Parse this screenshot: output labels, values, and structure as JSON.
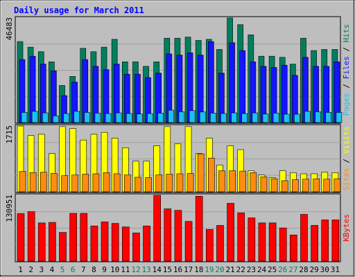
{
  "chart_data": {
    "type": "bar",
    "title": "Daily usage for March 2011",
    "categories": [
      "1",
      "2",
      "3",
      "4",
      "5",
      "6",
      "7",
      "8",
      "9",
      "10",
      "11",
      "12",
      "13",
      "14",
      "15",
      "16",
      "17",
      "18",
      "19",
      "20",
      "21",
      "22",
      "23",
      "24",
      "25",
      "26",
      "27",
      "28",
      "29",
      "30",
      "31"
    ],
    "weekend_days": [
      "5",
      "6",
      "12",
      "13",
      "19",
      "20",
      "26",
      "27"
    ],
    "panels": [
      {
        "name": "hits-files-pages",
        "max_label": "46483",
        "ylim": [
          0,
          46483
        ],
        "right_label": [
          "Pages",
          "Files",
          "Hits"
        ],
        "series": [
          {
            "name": "Hits",
            "color": "#007f5f",
            "values": [
              36000,
              33500,
              31500,
              27000,
              16500,
              20500,
              33000,
              31500,
              33500,
              37000,
              27000,
              27000,
              25000,
              27000,
              37500,
              37500,
              38000,
              36500,
              37000,
              32500,
              46500,
              43500,
              39000,
              29500,
              29500,
              29000,
              26000,
              37500,
              32000,
              32500,
              32500
            ]
          },
          {
            "name": "Files",
            "color": "#1515ff",
            "values": [
              28000,
              29500,
              26000,
              23000,
              12000,
              18000,
              28000,
              25000,
              23500,
              26000,
              21500,
              21500,
              20000,
              22000,
              30500,
              30000,
              31000,
              30000,
              36000,
              22000,
              35500,
              32000,
              27000,
              25000,
              24500,
              25500,
              21000,
              29000,
              25000,
              25000,
              27000
            ]
          },
          {
            "name": "Pages",
            "color": "#1ac1f2",
            "values": [
              4500,
              5000,
              4300,
              3000,
              4000,
              5000,
              4500,
              4200,
              4000,
              4300,
              4000,
              3800,
              4000,
              4200,
              5500,
              4800,
              5300,
              4700,
              4200,
              4000,
              4300,
              4000,
              4300,
              3800,
              4200,
              3700,
              3700,
              5000,
              4800,
              4500,
              4500
            ]
          }
        ]
      },
      {
        "name": "visits-sites",
        "max_label": "1715",
        "ylim": [
          0,
          1715
        ],
        "right_label": [
          "Sites",
          "Visits"
        ],
        "series": [
          {
            "name": "Visits",
            "color": "#ffff00",
            "values": [
              1715,
              1470,
              1500,
              1000,
              1700,
              1650,
              1350,
              1500,
              1550,
              1400,
              1150,
              800,
              800,
              1200,
              1700,
              1250,
              1700,
              1000,
              1400,
              700,
              1200,
              1100,
              550,
              440,
              370,
              550,
              500,
              470,
              470,
              510,
              500
            ]
          },
          {
            "name": "Sites",
            "color": "#ff8c0f",
            "values": [
              530,
              500,
              510,
              480,
              420,
              440,
              460,
              470,
              500,
              470,
              440,
              380,
              370,
              440,
              460,
              470,
              480,
              990,
              880,
              550,
              550,
              540,
              500,
              390,
              340,
              290,
              320,
              330,
              340,
              330,
              340
            ]
          }
        ]
      },
      {
        "name": "kbytes",
        "max_label": "130951",
        "ylim": [
          0,
          130951
        ],
        "right_label": [
          "KBytes"
        ],
        "series": [
          {
            "name": "KBytes",
            "color": "#ff0000",
            "values": [
              94500,
              98500,
              76000,
              77000,
              57000,
              95000,
              95000,
              70000,
              78000,
              75000,
              68000,
              56000,
              70000,
              131000,
              104000,
              101000,
              79000,
              129000,
              63000,
              71000,
              115000,
              96000,
              86000,
              76000,
              76000,
              66000,
              52000,
              93000,
              71000,
              82000,
              82000
            ]
          }
        ]
      }
    ]
  },
  "colors": {
    "background": "#bebebe",
    "title": "#0000ff",
    "axis_labels": "#000000",
    "weekend_labels": "#007f5f",
    "gridline": "#a0a0a0"
  }
}
